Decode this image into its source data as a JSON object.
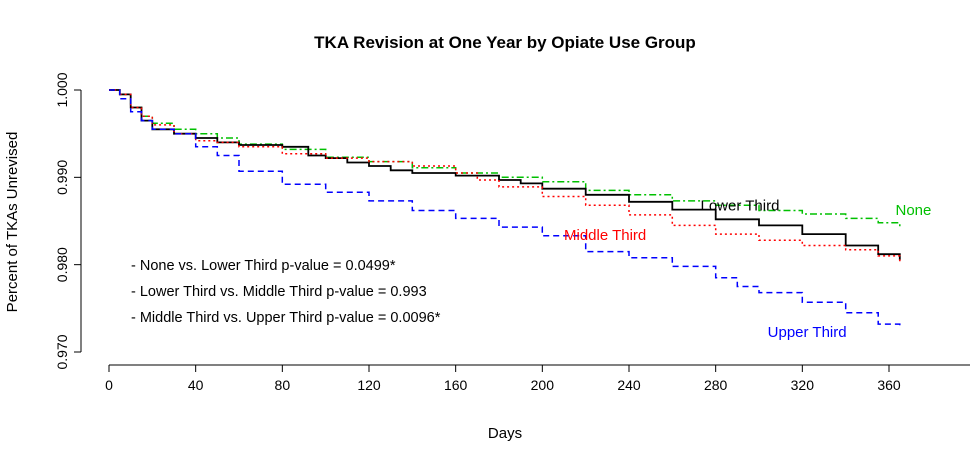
{
  "chart_data": {
    "type": "line",
    "title": "TKA Revision at One Year by Opiate Use Group",
    "xlabel": "Days",
    "ylabel": "Percent of TKAs Unrevised",
    "xlim": [
      0,
      380
    ],
    "ylim": [
      0.97,
      1.0
    ],
    "x_ticks": [
      "0",
      "40",
      "80",
      "120",
      "160",
      "200",
      "240",
      "280",
      "320",
      "360"
    ],
    "y_ticks": [
      "0.970",
      "0.980",
      "0.990",
      "1.000"
    ],
    "grid": false,
    "series": [
      {
        "name": "None",
        "color": "#00c000",
        "dash": "dashdot",
        "label_at": [
          363,
          0.9857
        ],
        "points": [
          [
            0,
            1.0
          ],
          [
            5,
            0.9995
          ],
          [
            10,
            0.998
          ],
          [
            15,
            0.997
          ],
          [
            20,
            0.9962
          ],
          [
            30,
            0.9955
          ],
          [
            40,
            0.995
          ],
          [
            50,
            0.9945
          ],
          [
            60,
            0.9938
          ],
          [
            80,
            0.9932
          ],
          [
            100,
            0.9923
          ],
          [
            120,
            0.9918
          ],
          [
            140,
            0.9911
          ],
          [
            160,
            0.9905
          ],
          [
            180,
            0.99
          ],
          [
            200,
            0.9895
          ],
          [
            220,
            0.9885
          ],
          [
            240,
            0.988
          ],
          [
            260,
            0.9873
          ],
          [
            280,
            0.9868
          ],
          [
            300,
            0.9862
          ],
          [
            320,
            0.9858
          ],
          [
            340,
            0.9853
          ],
          [
            355,
            0.9848
          ],
          [
            365,
            0.9843
          ]
        ]
      },
      {
        "name": "Lower Third",
        "color": "#000000",
        "dash": "solid",
        "label_at": [
          273,
          0.9862
        ],
        "points": [
          [
            0,
            1.0
          ],
          [
            5,
            0.9995
          ],
          [
            10,
            0.998
          ],
          [
            15,
            0.9965
          ],
          [
            20,
            0.9955
          ],
          [
            30,
            0.995
          ],
          [
            40,
            0.9945
          ],
          [
            50,
            0.994
          ],
          [
            60,
            0.9937
          ],
          [
            80,
            0.9935
          ],
          [
            90,
            0.9935
          ],
          [
            92,
            0.9925
          ],
          [
            100,
            0.9922
          ],
          [
            110,
            0.9917
          ],
          [
            120,
            0.9913
          ],
          [
            130,
            0.9908
          ],
          [
            140,
            0.9905
          ],
          [
            160,
            0.9902
          ],
          [
            180,
            0.9897
          ],
          [
            190,
            0.9893
          ],
          [
            200,
            0.9887
          ],
          [
            220,
            0.988
          ],
          [
            240,
            0.9872
          ],
          [
            260,
            0.9863
          ],
          [
            280,
            0.9852
          ],
          [
            300,
            0.9845
          ],
          [
            320,
            0.9835
          ],
          [
            340,
            0.9822
          ],
          [
            355,
            0.9812
          ],
          [
            365,
            0.9805
          ]
        ]
      },
      {
        "name": "Middle Third",
        "color": "#ff0000",
        "dash": "dotted",
        "label_at": [
          210,
          0.9828
        ],
        "points": [
          [
            0,
            1.0
          ],
          [
            5,
            0.9995
          ],
          [
            10,
            0.998
          ],
          [
            15,
            0.997
          ],
          [
            20,
            0.996
          ],
          [
            30,
            0.995
          ],
          [
            40,
            0.9942
          ],
          [
            50,
            0.994
          ],
          [
            60,
            0.9935
          ],
          [
            80,
            0.9927
          ],
          [
            100,
            0.9922
          ],
          [
            120,
            0.9918
          ],
          [
            140,
            0.9913
          ],
          [
            160,
            0.9905
          ],
          [
            170,
            0.9897
          ],
          [
            180,
            0.9889
          ],
          [
            200,
            0.9878
          ],
          [
            220,
            0.9868
          ],
          [
            240,
            0.9857
          ],
          [
            260,
            0.9845
          ],
          [
            280,
            0.9835
          ],
          [
            300,
            0.9828
          ],
          [
            320,
            0.9822
          ],
          [
            340,
            0.9817
          ],
          [
            355,
            0.981
          ],
          [
            365,
            0.9803
          ]
        ]
      },
      {
        "name": "Upper Third",
        "color": "#0000ff",
        "dash": "dashed",
        "label_at": [
          304,
          0.9717
        ],
        "points": [
          [
            0,
            1.0
          ],
          [
            5,
            0.999
          ],
          [
            10,
            0.9975
          ],
          [
            15,
            0.9965
          ],
          [
            20,
            0.9955
          ],
          [
            30,
            0.995
          ],
          [
            40,
            0.9935
          ],
          [
            50,
            0.9925
          ],
          [
            60,
            0.9907
          ],
          [
            80,
            0.9892
          ],
          [
            100,
            0.9883
          ],
          [
            120,
            0.9873
          ],
          [
            140,
            0.9862
          ],
          [
            160,
            0.9853
          ],
          [
            180,
            0.9843
          ],
          [
            200,
            0.9833
          ],
          [
            220,
            0.9815
          ],
          [
            240,
            0.9808
          ],
          [
            260,
            0.9798
          ],
          [
            280,
            0.9785
          ],
          [
            290,
            0.9775
          ],
          [
            300,
            0.9768
          ],
          [
            320,
            0.9757
          ],
          [
            340,
            0.9745
          ],
          [
            355,
            0.9732
          ],
          [
            365,
            0.973
          ]
        ]
      }
    ],
    "annotations": [
      "- None vs. Lower Third p-value = 0.0499*",
      "- Lower Third vs. Middle Third p-value = 0.993",
      "- Middle Third vs. Upper Third p-value = 0.0096*"
    ]
  }
}
